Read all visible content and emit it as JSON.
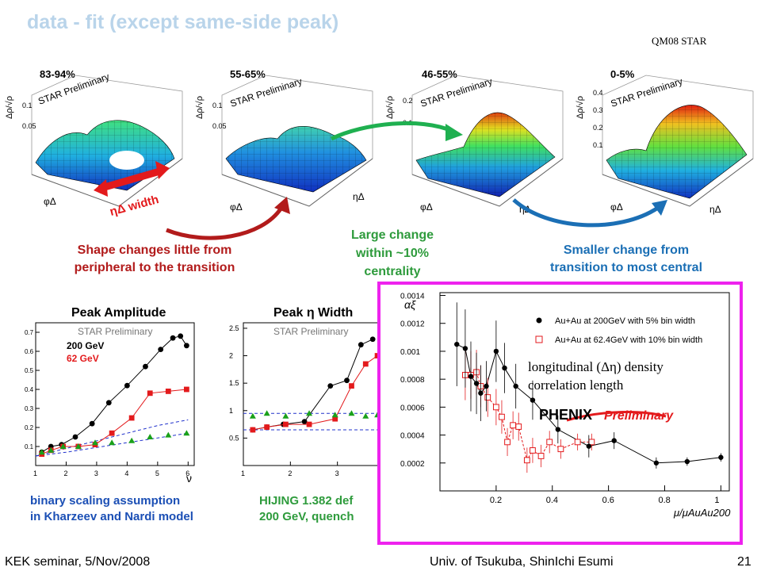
{
  "slide": {
    "title": "data - fit (except same-side peak)",
    "conference": "QM08 STAR",
    "footer_left": "KEK seminar, 5/Nov/2008",
    "footer_center": "Univ. of Tsukuba, ShinIchi Esumi",
    "page_number": "21"
  },
  "surfaces": {
    "panels": [
      {
        "centrality": "83-94%",
        "zlabel": "Δρ/√ρ",
        "tag": "STAR Preliminary",
        "zticks": [
          "0.1",
          "0.05"
        ]
      },
      {
        "centrality": "55-65%",
        "zlabel": "Δρ/√ρ",
        "tag": "STAR Preliminary",
        "zticks": [
          "0.1",
          "0.05"
        ]
      },
      {
        "centrality": "46-55%",
        "zlabel": "Δρ/√ρ",
        "tag": "STAR Preliminary",
        "zticks": [
          "0.2",
          "0.1"
        ]
      },
      {
        "centrality": "0-5%",
        "zlabel": "Δρ/√ρ",
        "tag": "STAR Preliminary",
        "zticks": [
          "0.4",
          "0.3",
          "0.2",
          "0.1"
        ]
      }
    ],
    "axis_phi": "φΔ",
    "axis_eta": "ηΔ",
    "width_label": "ηΔ width"
  },
  "annotations": {
    "red_text_line1": "Shape changes little from",
    "red_text_line2": "peripheral to the transition",
    "green_text_line1": "Large change",
    "green_text_line2": "within ~10%",
    "green_text_line3": "centrality",
    "blue_text_line1": "Smaller change from",
    "blue_text_line2": "transition to most central",
    "binary_line1": "binary scaling assumption",
    "binary_line2": "in Kharzeev and Nardi model",
    "hijing_line1": "HIJING 1.382 def",
    "hijing_line2": "200 GeV, quench"
  },
  "colors": {
    "series_200": "#000000",
    "series_62": "#e31a1c",
    "hijing": "#1aa11a",
    "phenix_box": "#ee22ee"
  },
  "chart_data": [
    {
      "type": "line",
      "title": "Peak Amplitude",
      "tag": "STAR Preliminary",
      "xlabel": "ν",
      "xticks": [
        "1",
        "2",
        "3",
        "4",
        "5",
        "6"
      ],
      "yticks": [
        "0.1",
        "0.2",
        "0.3",
        "0.4",
        "0.5",
        "0.6",
        "0.7"
      ],
      "xlim": [
        1,
        6.2
      ],
      "ylim": [
        0,
        0.75
      ],
      "series": [
        {
          "name": "200 GeV",
          "x": [
            1.2,
            1.5,
            1.85,
            2.3,
            2.85,
            3.4,
            4.0,
            4.6,
            5.1,
            5.5,
            5.75,
            5.95
          ],
          "y": [
            0.07,
            0.1,
            0.11,
            0.15,
            0.22,
            0.33,
            0.42,
            0.52,
            0.61,
            0.67,
            0.68,
            0.63
          ]
        },
        {
          "name": "62 GeV",
          "x": [
            1.2,
            1.5,
            1.9,
            2.4,
            2.95,
            3.5,
            4.15,
            4.75,
            5.35,
            5.95
          ],
          "y": [
            0.06,
            0.08,
            0.1,
            0.1,
            0.11,
            0.17,
            0.25,
            0.38,
            0.39,
            0.4
          ]
        },
        {
          "name": "",
          "x": [
            1.2,
            1.5,
            1.9,
            2.4,
            2.95,
            3.5,
            4.15,
            4.75,
            5.35,
            5.95
          ],
          "y": [
            0.07,
            0.08,
            0.1,
            0.1,
            0.12,
            0.12,
            0.13,
            0.15,
            0.16,
            0.17
          ]
        }
      ],
      "model_curves": [
        {
          "x": [
            1.0,
            2.0,
            3.0,
            4.0,
            5.0,
            6.0
          ],
          "y": [
            0.05,
            0.09,
            0.13,
            0.17,
            0.21,
            0.24
          ]
        },
        {
          "x": [
            1.0,
            2.0,
            3.0,
            4.0,
            5.0,
            6.0
          ],
          "y": [
            0.05,
            0.07,
            0.095,
            0.12,
            0.145,
            0.17
          ]
        }
      ]
    },
    {
      "type": "line",
      "title": "Peak η Width",
      "tag": "STAR Preliminary",
      "xticks": [
        "1",
        "2",
        "3"
      ],
      "yticks": [
        "0.5",
        "1",
        "1.5",
        "2",
        "2.5"
      ],
      "xlim": [
        1,
        4.0
      ],
      "ylim": [
        0,
        2.6
      ],
      "series": [
        {
          "name": "",
          "x": [
            1.2,
            1.5,
            1.85,
            2.3,
            2.85,
            3.2,
            3.5,
            3.75
          ],
          "y": [
            0.65,
            0.7,
            0.75,
            0.8,
            1.45,
            1.55,
            2.2,
            2.3
          ]
        },
        {
          "name": "",
          "x": [
            1.2,
            1.5,
            1.9,
            2.4,
            2.95,
            3.3,
            3.6,
            3.85
          ],
          "y": [
            0.65,
            0.7,
            0.75,
            0.75,
            0.85,
            1.45,
            1.85,
            2.0
          ]
        },
        {
          "name": "",
          "x": [
            1.2,
            1.5,
            1.9,
            2.4,
            2.95,
            3.3,
            3.6,
            3.85
          ],
          "y": [
            0.9,
            0.95,
            0.9,
            0.95,
            0.92,
            0.95,
            0.9,
            0.92
          ]
        }
      ],
      "model_lines": [
        0.95,
        0.65
      ]
    },
    {
      "type": "scatter",
      "ylabel": "αξ",
      "xlabel": "μ/μAuAu200",
      "xticks": [
        "0.2",
        "0.4",
        "0.6",
        "0.8",
        "1"
      ],
      "yticks": [
        "0.0002",
        "0.0004",
        "0.0006",
        "0.0008",
        "0.001",
        "0.0012",
        "0.0014"
      ],
      "xlim": [
        0,
        1.03
      ],
      "ylim": [
        0,
        0.00142
      ],
      "annotation_line1": "longitudinal (Δη) density",
      "annotation_line2": "correlation length",
      "phenix_label": "PHENIX",
      "phenix_sub": "Preliminary",
      "series": [
        {
          "name": "Au+Au at 200GeV with 5% bin width",
          "x": [
            0.06,
            0.09,
            0.11,
            0.13,
            0.145,
            0.165,
            0.2,
            0.23,
            0.27,
            0.33,
            0.42,
            0.53,
            0.62,
            0.77,
            0.88,
            1.0
          ],
          "y": [
            0.00105,
            0.00102,
            0.00082,
            0.00077,
            0.0007,
            0.00075,
            0.001,
            0.00088,
            0.00075,
            0.00065,
            0.00044,
            0.00032,
            0.00036,
            0.0002,
            0.00021,
            0.00024
          ],
          "err": [
            0.0003,
            0.00028,
            0.00025,
            0.00022,
            0.0002,
            0.00018,
            0.00022,
            0.00018,
            0.00016,
            0.00014,
            0.0001,
            8e-05,
            6e-05,
            4e-05,
            3e-05,
            3e-05
          ]
        },
        {
          "name": "Au+Au at 62.4GeV with 10% bin width",
          "x": [
            0.09,
            0.11,
            0.13,
            0.145,
            0.17,
            0.2,
            0.22,
            0.24,
            0.26,
            0.28,
            0.31,
            0.33,
            0.36,
            0.39,
            0.43,
            0.49,
            0.54
          ],
          "y": [
            0.00083,
            0.00083,
            0.00085,
            0.00075,
            0.00067,
            0.0006,
            0.00053,
            0.00035,
            0.00047,
            0.00046,
            0.00022,
            0.00029,
            0.00025,
            0.00035,
            0.0003,
            0.00035,
            0.00035
          ],
          "err": [
            0.00018,
            0.00017,
            0.00016,
            0.00015,
            0.00014,
            0.00013,
            0.00012,
            0.0001,
            0.0001,
            0.0001,
            9e-05,
            9e-05,
            8e-05,
            8e-05,
            7e-05,
            6e-05,
            6e-05
          ]
        }
      ]
    }
  ]
}
